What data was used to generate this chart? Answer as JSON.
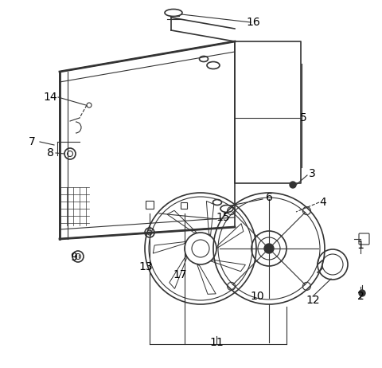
{
  "bg_color": "#ffffff",
  "line_color": "#333333",
  "label_color": "#000000",
  "font_size": 10
}
